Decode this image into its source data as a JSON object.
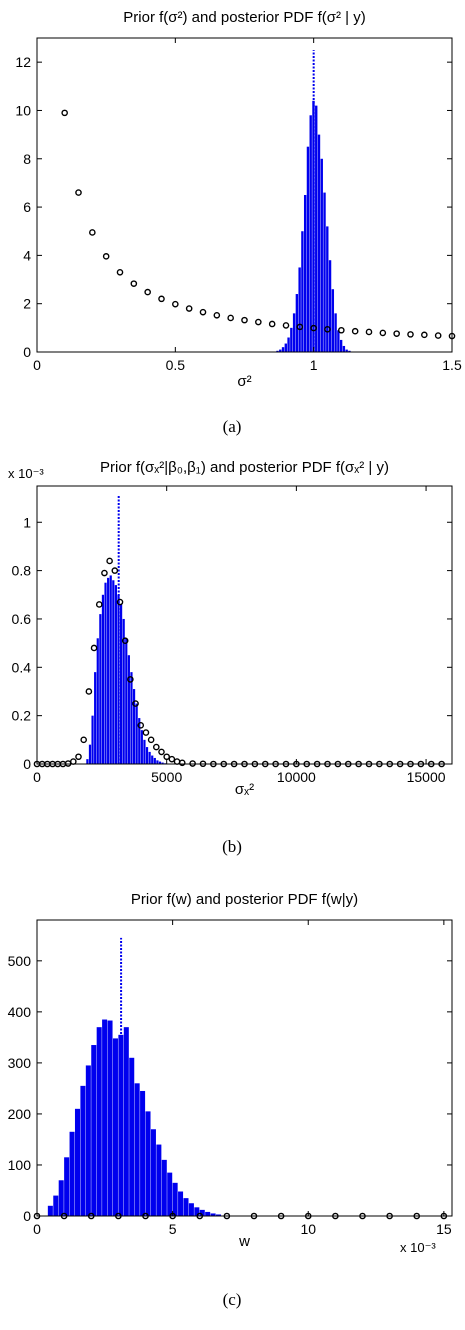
{
  "chart_data": [
    {
      "type": "bar",
      "title": "Prior f(σ²) and posterior PDF f(σ² | y)",
      "xlabel": "σ²",
      "caption": "(a)",
      "xlim": [
        0,
        1.5
      ],
      "ylim": [
        0,
        13
      ],
      "xticks": [
        "0",
        "0.5",
        "1",
        "1.5"
      ],
      "yticks": [
        "0",
        "2",
        "4",
        "6",
        "8",
        "10",
        "12"
      ],
      "series": [
        {
          "kind": "histogram",
          "bin_width": 0.01,
          "x": [
            0.87,
            0.88,
            0.89,
            0.9,
            0.91,
            0.92,
            0.93,
            0.94,
            0.95,
            0.96,
            0.97,
            0.98,
            0.99,
            1.0,
            1.01,
            1.02,
            1.03,
            1.04,
            1.05,
            1.06,
            1.07,
            1.08,
            1.09,
            1.1,
            1.11,
            1.12,
            1.13
          ],
          "y": [
            0.05,
            0.1,
            0.2,
            0.35,
            0.6,
            1.0,
            1.6,
            2.4,
            3.5,
            5.0,
            6.5,
            8.5,
            9.8,
            10.4,
            10.2,
            9.0,
            8.0,
            6.6,
            5.2,
            3.8,
            2.6,
            1.6,
            0.9,
            0.5,
            0.25,
            0.1,
            0.05
          ]
        },
        {
          "kind": "scatter",
          "x": [
            0.1,
            0.15,
            0.2,
            0.25,
            0.3,
            0.35,
            0.4,
            0.45,
            0.5,
            0.55,
            0.6,
            0.65,
            0.7,
            0.75,
            0.8,
            0.85,
            0.9,
            0.95,
            1.0,
            1.05,
            1.1,
            1.15,
            1.2,
            1.25,
            1.3,
            1.35,
            1.4,
            1.45,
            1.5
          ],
          "y": [
            9.9,
            6.6,
            4.95,
            3.96,
            3.3,
            2.83,
            2.48,
            2.2,
            1.98,
            1.8,
            1.65,
            1.52,
            1.41,
            1.32,
            1.24,
            1.16,
            1.1,
            1.04,
            0.99,
            0.94,
            0.9,
            0.86,
            0.83,
            0.79,
            0.76,
            0.73,
            0.71,
            0.68,
            0.66
          ]
        },
        {
          "kind": "vline",
          "x": 1.0,
          "y": 12.5
        }
      ]
    },
    {
      "type": "bar",
      "title": "Prior f(σₓ²|β₀,β₁) and posterior PDF f(σₓ² | y)",
      "xlabel": "σₓ²",
      "caption": "(b)",
      "multiplier": "x 10⁻³",
      "xlim": [
        0,
        16000
      ],
      "ylim": [
        0,
        1.15
      ],
      "xticks": [
        "0",
        "5000",
        "10000",
        "15000"
      ],
      "yticks": [
        "0",
        "0.2",
        "0.4",
        "0.6",
        "0.8",
        "1"
      ],
      "series": [
        {
          "kind": "histogram",
          "bin_width": 100,
          "x": [
            1950,
            2050,
            2150,
            2250,
            2350,
            2450,
            2550,
            2650,
            2750,
            2850,
            2950,
            3050,
            3150,
            3250,
            3350,
            3450,
            3550,
            3650,
            3750,
            3850,
            3950,
            4050,
            4150,
            4250,
            4350,
            4450,
            4550,
            4650,
            4750,
            4850,
            4950,
            5050
          ],
          "y": [
            0.02,
            0.08,
            0.2,
            0.38,
            0.52,
            0.62,
            0.7,
            0.75,
            0.77,
            0.78,
            0.76,
            0.74,
            0.7,
            0.66,
            0.6,
            0.52,
            0.45,
            0.38,
            0.31,
            0.25,
            0.19,
            0.14,
            0.1,
            0.07,
            0.05,
            0.035,
            0.025,
            0.015,
            0.01,
            0.006,
            0.003,
            0.001
          ]
        },
        {
          "kind": "scatter",
          "x": [
            0,
            200,
            400,
            600,
            800,
            1000,
            1200,
            1400,
            1600,
            1800,
            2000,
            2200,
            2400,
            2600,
            2800,
            3000,
            3200,
            3400,
            3600,
            3800,
            4000,
            4200,
            4400,
            4600,
            4800,
            5000,
            5200,
            5400,
            5600,
            6000,
            6400,
            6800,
            7200,
            7600,
            8000,
            8400,
            8800,
            9200,
            9600,
            10000,
            10400,
            10800,
            11200,
            11600,
            12000,
            12400,
            12800,
            13200,
            13600,
            14000,
            14400,
            14800,
            15200,
            15600
          ],
          "y": [
            0,
            0,
            0,
            0,
            0,
            0,
            0.002,
            0.01,
            0.03,
            0.1,
            0.3,
            0.48,
            0.66,
            0.79,
            0.84,
            0.8,
            0.67,
            0.51,
            0.35,
            0.25,
            0.16,
            0.13,
            0.1,
            0.07,
            0.05,
            0.03,
            0.02,
            0.01,
            0.005,
            0.002,
            0.001,
            0,
            0,
            0,
            0,
            0,
            0,
            0,
            0,
            0,
            0,
            0,
            0,
            0,
            0,
            0,
            0,
            0,
            0,
            0,
            0,
            0,
            0,
            0
          ]
        },
        {
          "kind": "vline",
          "x": 3150,
          "y": 1.11
        }
      ]
    },
    {
      "type": "bar",
      "title": "Prior f(w) and posterior PDF f(w|y)",
      "xlabel": "w",
      "caption": "(c)",
      "multiplier": "x 10⁻³",
      "xlim": [
        0,
        15.3
      ],
      "ylim": [
        0,
        580
      ],
      "xticks": [
        "0",
        "5",
        "10",
        "15"
      ],
      "yticks": [
        "0",
        "100",
        "200",
        "300",
        "400",
        "500"
      ],
      "series": [
        {
          "kind": "histogram",
          "bin_width": 0.2,
          "x": [
            0.5,
            0.7,
            0.9,
            1.1,
            1.3,
            1.5,
            1.7,
            1.9,
            2.1,
            2.3,
            2.5,
            2.7,
            2.9,
            3.1,
            3.3,
            3.5,
            3.7,
            3.9,
            4.1,
            4.3,
            4.5,
            4.7,
            4.9,
            5.1,
            5.3,
            5.5,
            5.7,
            5.9,
            6.1,
            6.3,
            6.5,
            6.7
          ],
          "y": [
            20,
            40,
            70,
            115,
            165,
            210,
            255,
            295,
            335,
            370,
            385,
            383,
            348,
            355,
            370,
            310,
            260,
            245,
            205,
            170,
            140,
            110,
            85,
            65,
            48,
            35,
            25,
            17,
            12,
            8,
            5,
            3
          ]
        },
        {
          "kind": "scatter",
          "x": [
            0,
            1,
            2,
            3,
            4,
            5,
            6,
            7,
            8,
            9,
            10,
            11,
            12,
            13,
            14,
            15
          ],
          "y": [
            0,
            0,
            0,
            0,
            0,
            0,
            0,
            0,
            0,
            0,
            0,
            0,
            0,
            0,
            0,
            0
          ]
        },
        {
          "kind": "vline",
          "x": 3.1,
          "y": 545
        }
      ]
    }
  ]
}
